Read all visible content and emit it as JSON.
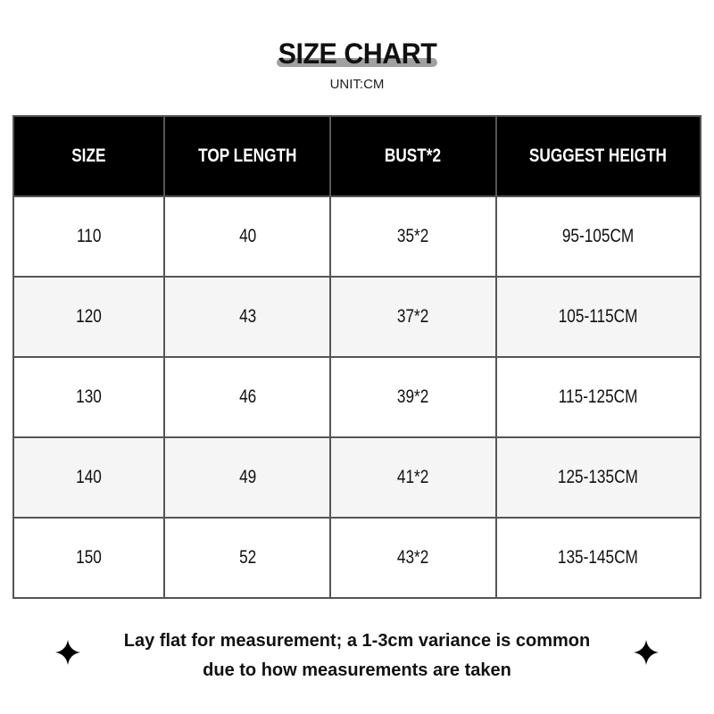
{
  "title": "SIZE CHART",
  "unit": "UNIT:CM",
  "table": {
    "headers": [
      "SIZE",
      "TOP LENGTH",
      "BUST*2",
      "SUGGEST HEIGTH"
    ],
    "rows": [
      [
        "110",
        "40",
        "35*2",
        "95-105CM"
      ],
      [
        "120",
        "43",
        "37*2",
        "105-115CM"
      ],
      [
        "130",
        "46",
        "39*2",
        "115-125CM"
      ],
      [
        "140",
        "49",
        "41*2",
        "125-135CM"
      ],
      [
        "150",
        "52",
        "43*2",
        "135-145CM"
      ]
    ]
  },
  "note": {
    "line1": "Lay flat for measurement; a 1-3cm variance is common",
    "line2": "due to how measurements are taken"
  },
  "icons": [
    "sparkle-star-icon",
    "sparkle-star-icon"
  ]
}
